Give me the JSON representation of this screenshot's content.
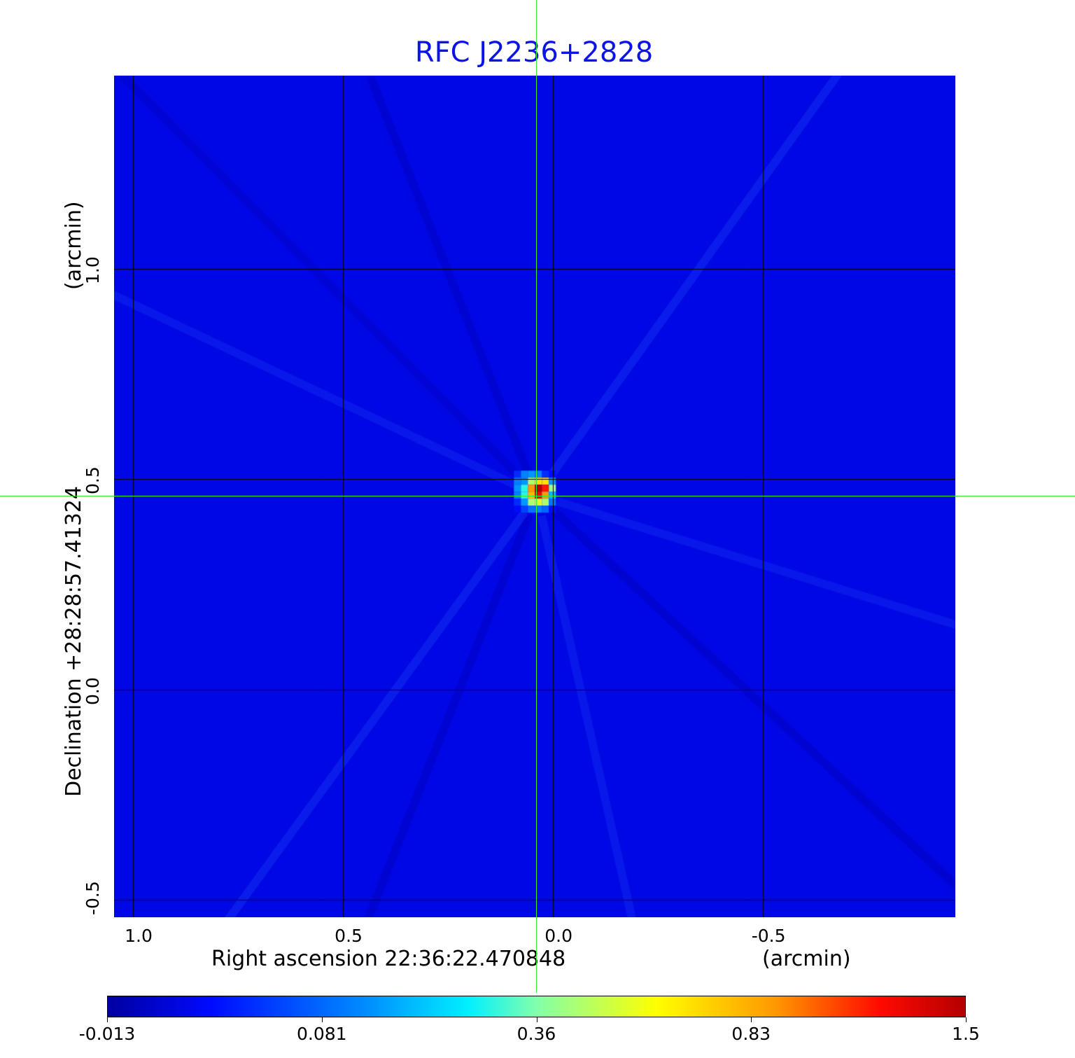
{
  "chart_data": {
    "type": "heatmap",
    "title": "RFC J2236+2828",
    "xlabel": "Right ascension  22:36:22.470848",
    "xunit": "(arcmin)",
    "ylabel": "Declination  +28:28:57.41324",
    "yunit": "(arcmin)",
    "x_ticks": [
      {
        "value": 1.0,
        "label": "1.0"
      },
      {
        "value": 0.5,
        "label": "0.5"
      },
      {
        "value": 0.0,
        "label": "0.0"
      },
      {
        "value": -0.5,
        "label": "-0.5"
      }
    ],
    "y_ticks": [
      {
        "value": 1.0,
        "label": "1.0"
      },
      {
        "value": 0.5,
        "label": "0.5"
      },
      {
        "value": 0.0,
        "label": "0.0"
      },
      {
        "value": -0.5,
        "label": "-0.5"
      }
    ],
    "xlim": [
      1.045,
      -0.958
    ],
    "ylim": [
      -0.542,
      1.46
    ],
    "x_reversed": true,
    "grid": true,
    "grid_color": "#000000",
    "crosshair": {
      "x": 0.038,
      "y": 0.462,
      "color": "#33ee33"
    },
    "background_value": 0.02,
    "colormap": "jet",
    "colorbar": {
      "placement": "bottom",
      "ticks": [
        {
          "value": -0.013,
          "label": "-0.013"
        },
        {
          "value": 0.081,
          "label": "0.081"
        },
        {
          "value": 0.36,
          "label": "0.36"
        },
        {
          "value": 0.83,
          "label": "0.83"
        },
        {
          "value": 1.5,
          "label": "1.5"
        }
      ]
    },
    "peak_cells": [
      [
        0.05,
        0.12,
        0.15,
        0.12,
        0.05,
        0.03
      ],
      [
        0.12,
        0.15,
        0.45,
        0.7,
        0.7,
        0.15
      ],
      [
        0.15,
        0.3,
        0.9,
        1.5,
        1.2,
        0.4
      ],
      [
        0.12,
        0.3,
        0.8,
        1.3,
        0.9,
        0.2
      ],
      [
        0.05,
        0.15,
        0.45,
        0.55,
        0.45,
        0.1
      ],
      [
        0.03,
        0.06,
        0.1,
        0.12,
        0.08,
        0.03
      ]
    ]
  }
}
